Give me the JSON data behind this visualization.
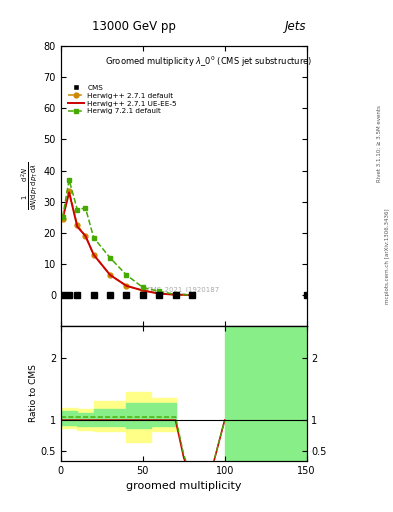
{
  "title_main": "13000 GeV pp",
  "title_right": "Jets",
  "plot_title": "Groomed multiplicity $\\lambda\\_0^0$ (CMS jet substructure)",
  "ylabel_ratio": "Ratio to CMS",
  "xlabel": "groomed multiplicity",
  "right_label1": "Rivet 3.1.10; ≥ 3.5M events",
  "right_label2": "mcplots.cern.ch [arXiv:1306.3436]",
  "watermark": "CMS_2021_I1920187",
  "cms_x": [
    1,
    5,
    10,
    20,
    30,
    40,
    50,
    60,
    70,
    80,
    150
  ],
  "cms_y": [
    0,
    0,
    0,
    0,
    0,
    0,
    0,
    0,
    0,
    0,
    0
  ],
  "hd_x": [
    1,
    5,
    10,
    15,
    20,
    30,
    40,
    50,
    60,
    70,
    80
  ],
  "hd_y": [
    24.5,
    33.5,
    22.5,
    19.0,
    13.0,
    6.5,
    3.0,
    1.5,
    0.5,
    0.15,
    0.05
  ],
  "hu_x": [
    1,
    5,
    10,
    15,
    20,
    30,
    40,
    50,
    60,
    70,
    80
  ],
  "hu_y": [
    24.5,
    33.0,
    22.0,
    19.0,
    13.0,
    6.5,
    3.0,
    1.5,
    0.5,
    0.15,
    0.05
  ],
  "h7_x": [
    1,
    5,
    10,
    15,
    20,
    30,
    40,
    50,
    60,
    70,
    80
  ],
  "h7_y": [
    25.0,
    37.0,
    27.5,
    28.0,
    18.5,
    12.0,
    6.5,
    2.5,
    1.2,
    0.25,
    0.08
  ],
  "ylim_main": [
    -10,
    80
  ],
  "ylim_ratio": [
    0.35,
    2.5
  ],
  "xlim": [
    0,
    150
  ],
  "color_cms": "#000000",
  "color_hd": "#cc8800",
  "color_hu": "#cc0000",
  "color_h7": "#44aa00",
  "color_yellow": "#ffff88",
  "color_green": "#88ee88",
  "yellow_x": [
    0,
    10,
    20,
    40,
    55,
    70
  ],
  "yellow_lo": [
    0.88,
    0.85,
    0.82,
    0.65,
    0.82,
    0.82
  ],
  "yellow_hi": [
    1.2,
    1.18,
    1.3,
    1.45,
    1.35,
    1.35
  ],
  "green_x1": [
    0,
    10,
    20,
    40,
    55,
    70
  ],
  "green_lo1": [
    0.92,
    0.9,
    0.9,
    0.88,
    0.9,
    0.9
  ],
  "green_hi1": [
    1.15,
    1.12,
    1.18,
    1.28,
    1.28,
    1.28
  ],
  "green_x2_lo": 100,
  "green_x2_hi": 150,
  "green2_lo": 0.35,
  "green2_hi": 2.5,
  "red_ratio_x": [
    0,
    70,
    75,
    80,
    85,
    90,
    100
  ],
  "red_ratio_y": [
    1.0,
    1.0,
    0.4,
    0.05,
    0.0,
    0.0,
    1.0
  ],
  "green_ratio_x": [
    0,
    70,
    75,
    80,
    85,
    90,
    100
  ],
  "green_ratio_y": [
    1.05,
    1.05,
    0.45,
    0.08,
    0.0,
    0.0,
    1.0
  ]
}
